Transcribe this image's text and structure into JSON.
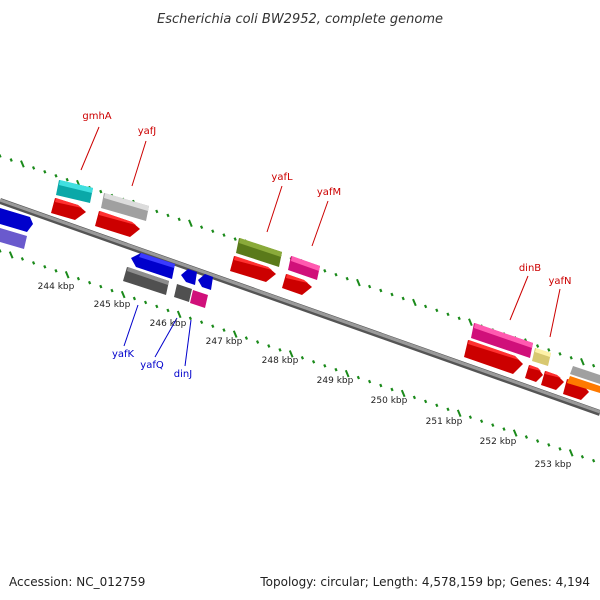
{
  "title": "Escherichia coli BW2952, complete genome",
  "footer": {
    "accession": "Accession: NC_012759",
    "summary": "Topology: circular; Length: 4,578,159 bp; Genes: 4,194"
  },
  "kbp_labels": [
    "244 kbp",
    "245 kbp",
    "246 kbp",
    "247 kbp",
    "248 kbp",
    "249 kbp",
    "250 kbp",
    "251 kbp",
    "252 kbp",
    "253 kbp"
  ],
  "forward_genes": [
    "gmhA",
    "yafJ",
    "yafL",
    "yafM",
    "dinB",
    "yafN"
  ],
  "reverse_genes": [
    "yafK",
    "yafQ",
    "dinJ"
  ],
  "colors": {
    "forward_label": "#cc0000",
    "reverse_label": "#0000cc",
    "backbone": "#808080",
    "tick": "#1a8a1a"
  }
}
